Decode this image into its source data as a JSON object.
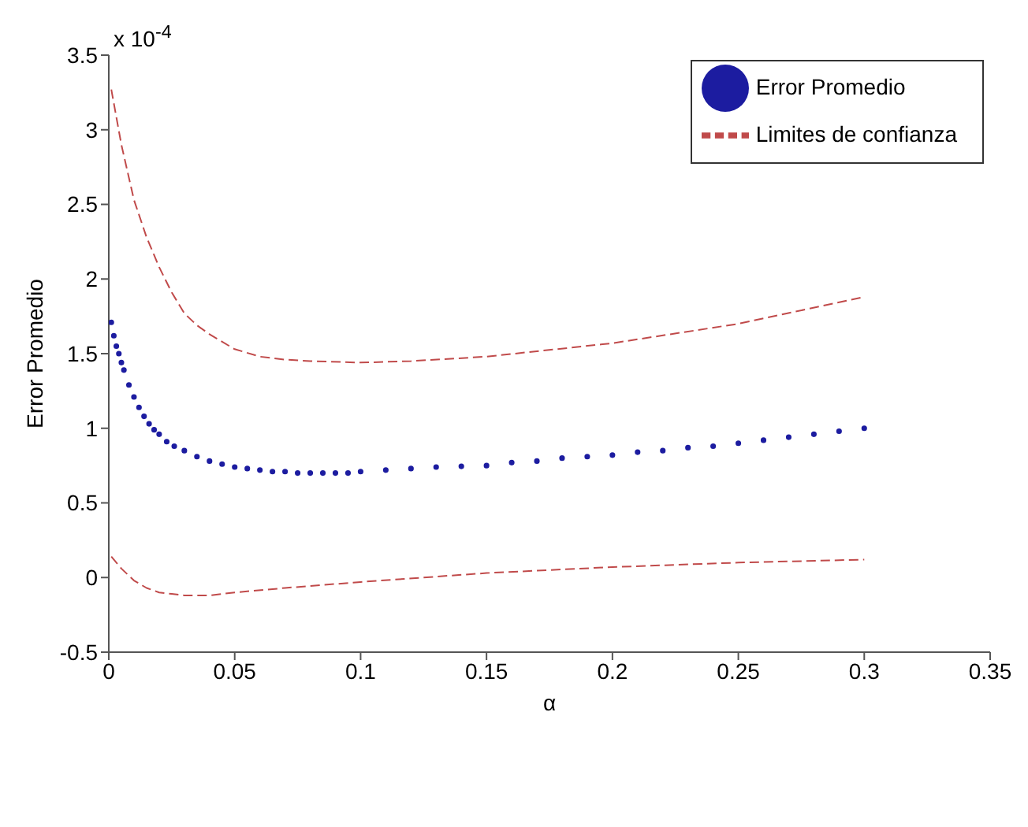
{
  "chart_data": {
    "type": "scatter",
    "xlabel": "α",
    "ylabel": "Error Promedio",
    "annotations": [
      "x 10$^{-4}$"
    ],
    "xlim": [
      0,
      0.35
    ],
    "xticks": [
      0,
      0.05,
      0.1,
      0.15,
      0.2,
      0.25,
      0.3,
      0.35
    ],
    "ylim": [
      -0.5,
      3.5
    ],
    "yticks": [
      -0.5,
      0,
      0.5,
      1,
      1.5,
      2,
      2.5,
      3,
      3.5
    ],
    "grid": false,
    "legend": "top right",
    "marker": "circle",
    "series": [
      {
        "name": "Error Promedio",
        "type": "scatter",
        "color": "#1c1ca0",
        "x": [
          0.001,
          0.002,
          0.003,
          0.004,
          0.005,
          0.006,
          0.008,
          0.01,
          0.012,
          0.014,
          0.016,
          0.018,
          0.02,
          0.023,
          0.026,
          0.03,
          0.035,
          0.04,
          0.045,
          0.05,
          0.055,
          0.06,
          0.065,
          0.07,
          0.075,
          0.08,
          0.085,
          0.09,
          0.095,
          0.1,
          0.11,
          0.12,
          0.13,
          0.14,
          0.15,
          0.16,
          0.17,
          0.18,
          0.19,
          0.2,
          0.21,
          0.22,
          0.23,
          0.24,
          0.25,
          0.26,
          0.27,
          0.28,
          0.29,
          0.3
        ],
        "values": [
          1.71,
          1.62,
          1.55,
          1.5,
          1.44,
          1.39,
          1.29,
          1.21,
          1.14,
          1.08,
          1.03,
          0.99,
          0.96,
          0.91,
          0.88,
          0.85,
          0.81,
          0.78,
          0.76,
          0.74,
          0.73,
          0.72,
          0.71,
          0.71,
          0.7,
          0.7,
          0.7,
          0.7,
          0.7,
          0.71,
          0.72,
          0.73,
          0.74,
          0.745,
          0.75,
          0.77,
          0.78,
          0.8,
          0.81,
          0.82,
          0.84,
          0.85,
          0.87,
          0.88,
          0.9,
          0.92,
          0.94,
          0.96,
          0.98,
          1.0
        ]
      },
      {
        "name": "Limites de confianza",
        "type": "line",
        "line_style": "dashed",
        "marker": "none",
        "color": "#c04a4a",
        "x": [
          0.001,
          0.005,
          0.01,
          0.015,
          0.02,
          0.025,
          0.03,
          0.035,
          0.04,
          0.05,
          0.06,
          0.07,
          0.08,
          0.1,
          0.12,
          0.15,
          0.2,
          0.25,
          0.3
        ],
        "values": [
          3.27,
          2.9,
          2.53,
          2.28,
          2.08,
          1.91,
          1.77,
          1.69,
          1.63,
          1.53,
          1.48,
          1.46,
          1.45,
          1.44,
          1.45,
          1.48,
          1.57,
          1.7,
          1.88
        ]
      },
      {
        "type": "line",
        "line_style": "dashed",
        "marker": "none",
        "color": "#c04a4a",
        "x": [
          0.001,
          0.005,
          0.01,
          0.015,
          0.02,
          0.025,
          0.03,
          0.04,
          0.05,
          0.07,
          0.1,
          0.15,
          0.2,
          0.25,
          0.3
        ],
        "values": [
          0.14,
          0.06,
          -0.02,
          -0.07,
          -0.1,
          -0.11,
          -0.12,
          -0.12,
          -0.1,
          -0.07,
          -0.03,
          0.03,
          0.07,
          0.1,
          0.12
        ]
      }
    ]
  }
}
